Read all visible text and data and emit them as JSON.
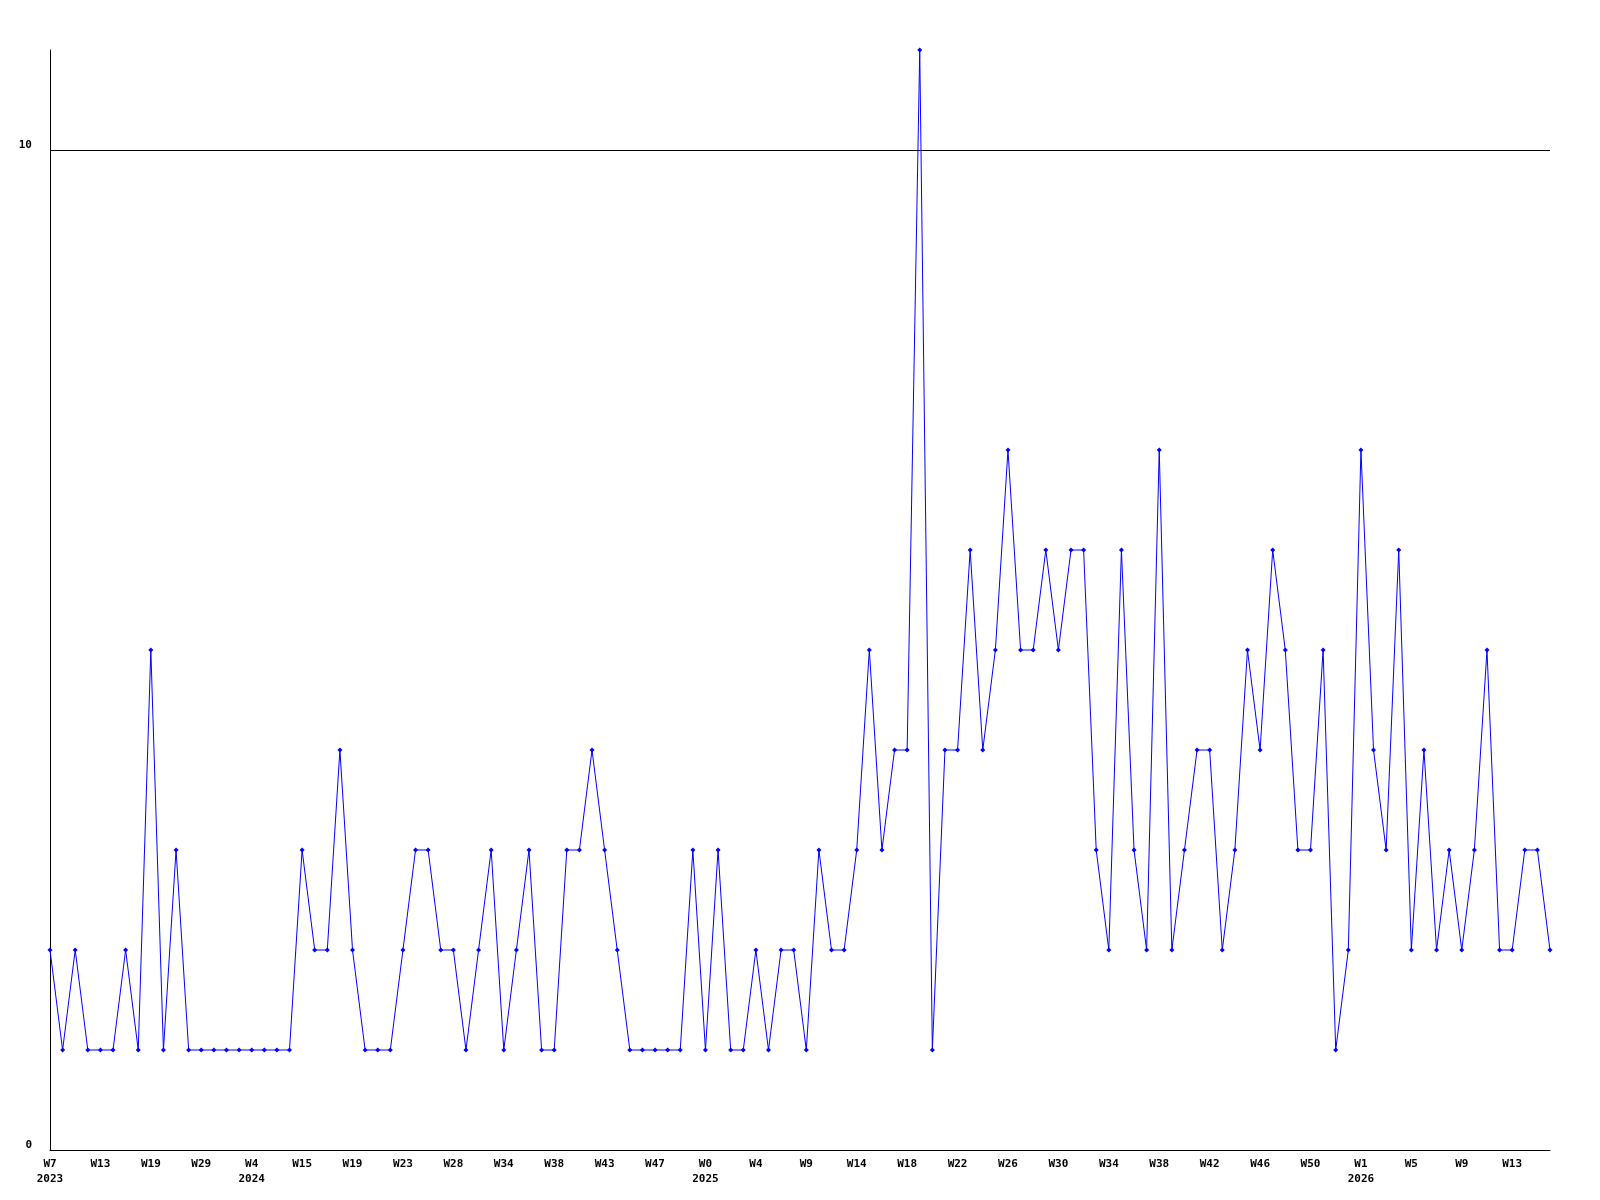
{
  "chart_data": {
    "type": "line",
    "categories": [
      "W7\n2023",
      null,
      null,
      null,
      "W13",
      null,
      null,
      null,
      "W19",
      null,
      null,
      null,
      "W29",
      null,
      null,
      null,
      "W4\n2024",
      null,
      null,
      null,
      "W15",
      null,
      null,
      null,
      "W19",
      null,
      null,
      null,
      "W23",
      null,
      null,
      null,
      "W28",
      null,
      null,
      null,
      "W34",
      null,
      null,
      null,
      "W38",
      null,
      null,
      null,
      "W43",
      null,
      null,
      null,
      "W47",
      null,
      null,
      null,
      "W0\n2025",
      null,
      null,
      null,
      "W4",
      null,
      null,
      null,
      "W9",
      null,
      null,
      null,
      "W14",
      null,
      null,
      null,
      "W18",
      null,
      null,
      null,
      "W22",
      null,
      null,
      null,
      "W26",
      null,
      null,
      null,
      "W30",
      null,
      null,
      null,
      "W34",
      null,
      null,
      null,
      "W38",
      null,
      null,
      null,
      "W42",
      null,
      null,
      null,
      "W46",
      null,
      null,
      null,
      "W50",
      null,
      null,
      null,
      "W1\n2026",
      null,
      null,
      null,
      "W5",
      null,
      null,
      null,
      "W9",
      null,
      null,
      null,
      "W13",
      null,
      null,
      null
    ],
    "series": [
      {
        "color": "#0000ff",
        "values": [
          2,
          1,
          2,
          1,
          1,
          1,
          2,
          1,
          5,
          1,
          3,
          1,
          1,
          1,
          1,
          1,
          1,
          1,
          1,
          1,
          3,
          2,
          2,
          4,
          2,
          1,
          1,
          1,
          2,
          3,
          3,
          2,
          2,
          1,
          2,
          3,
          1,
          2,
          3,
          1,
          1,
          3,
          3,
          4,
          3,
          2,
          1,
          1,
          1,
          1,
          1,
          3,
          1,
          3,
          1,
          1,
          2,
          1,
          2,
          2,
          1,
          3,
          2,
          2,
          3,
          5,
          3,
          4,
          4,
          11,
          1,
          4,
          4,
          6,
          4,
          5,
          7,
          5,
          5,
          6,
          5,
          6,
          6,
          3,
          2,
          6,
          3,
          2,
          7,
          2,
          3,
          4,
          4,
          2,
          3,
          5,
          4,
          6,
          5,
          3,
          3,
          5,
          1,
          2,
          7,
          4,
          3,
          6,
          2,
          4,
          2,
          3,
          2,
          3,
          5,
          2,
          2,
          3,
          3,
          2
        ]
      }
    ],
    "ylim": [
      0,
      11
    ],
    "yticks": [
      0,
      10
    ],
    "grid": "y",
    "marker": "diamond",
    "line_style": "solid"
  }
}
